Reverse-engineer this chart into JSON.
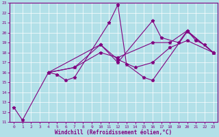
{
  "xlabel": "Windchill (Refroidissement éolien,°C)",
  "xlim": [
    -0.5,
    23.5
  ],
  "ylim": [
    11,
    23
  ],
  "xticks": [
    0,
    1,
    2,
    3,
    4,
    5,
    6,
    7,
    8,
    9,
    10,
    11,
    12,
    13,
    14,
    15,
    16,
    17,
    18,
    19,
    20,
    21,
    22,
    23
  ],
  "yticks": [
    11,
    12,
    13,
    14,
    15,
    16,
    17,
    18,
    19,
    20,
    21,
    22,
    23
  ],
  "bg_color": "#b2e0e8",
  "grid_color": "#9ecdd6",
  "line_color": "#800080",
  "series": [
    {
      "x": [
        0,
        1,
        4,
        5,
        6,
        7,
        11,
        12,
        13,
        15,
        16,
        20,
        23
      ],
      "y": [
        12.5,
        11.2,
        16.0,
        15.8,
        15.2,
        15.5,
        21.0,
        22.8,
        16.8,
        15.5,
        15.2,
        20.1,
        18.0
      ]
    },
    {
      "x": [
        4,
        7,
        10,
        12,
        14,
        16,
        18,
        20,
        23
      ],
      "y": [
        16.0,
        16.5,
        18.8,
        17.3,
        16.5,
        17.0,
        18.5,
        19.2,
        18.0
      ]
    },
    {
      "x": [
        4,
        10,
        12,
        16,
        17,
        19,
        20,
        21,
        22,
        23
      ],
      "y": [
        16.0,
        18.8,
        17.0,
        21.2,
        19.5,
        19.0,
        20.2,
        19.2,
        18.8,
        18.0
      ]
    },
    {
      "x": [
        4,
        7,
        10,
        12,
        16,
        18,
        20,
        23
      ],
      "y": [
        16.0,
        16.5,
        18.0,
        17.5,
        19.0,
        19.0,
        20.2,
        18.0
      ]
    }
  ]
}
